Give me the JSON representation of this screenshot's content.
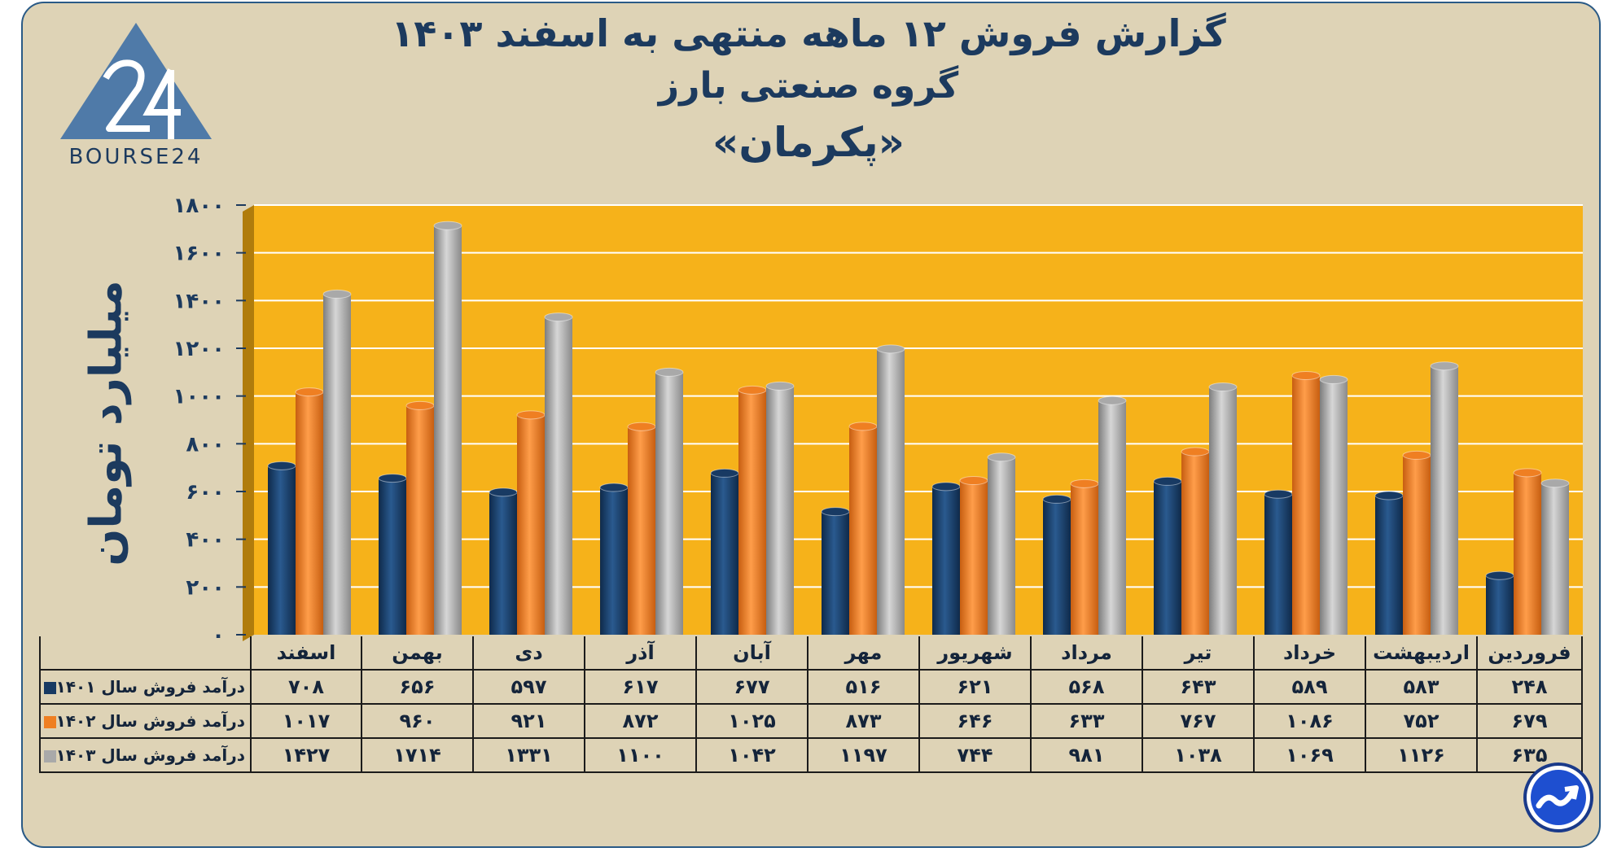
{
  "titles": {
    "line1": "گزارش  فروش ۱۲ ماهه منتهی به اسفند ۱۴۰۳",
    "line2": "گروه صنعتی بارز",
    "line3": "«پکرمان»"
  },
  "logo": {
    "text": "BOURSE24"
  },
  "colors": {
    "background": "#ded3b6",
    "plot_area": "#f6b21a",
    "series_1401": "#183a63",
    "series_1402": "#ef7f22",
    "series_1403": "#a9a9a9",
    "title": "#1c3a5e"
  },
  "chart_data": {
    "type": "bar",
    "ylabel": "میلیارد تومان",
    "ylim": [
      0,
      1800
    ],
    "yticks": [
      0,
      200,
      400,
      600,
      800,
      1000,
      1200,
      1400,
      1600,
      1800
    ],
    "ytick_labels": [
      "۰",
      "۲۰۰",
      "۴۰۰",
      "۶۰۰",
      "۸۰۰",
      "۱۰۰۰",
      "۱۲۰۰",
      "۱۴۰۰",
      "۱۶۰۰",
      "۱۸۰۰"
    ],
    "grid": true,
    "categories": [
      "فروردین",
      "اردیبهشت",
      "خرداد",
      "تیر",
      "مرداد",
      "شهریور",
      "مهر",
      "آبان",
      "آذر",
      "دی",
      "بهمن",
      "اسفند"
    ],
    "series": [
      {
        "name": "درآمد فروش سال ۱۴۰۱",
        "color": "#183a63",
        "values": [
          248,
          583,
          589,
          643,
          568,
          621,
          516,
          677,
          617,
          597,
          656,
          708
        ],
        "labels": [
          "۲۴۸",
          "۵۸۳",
          "۵۸۹",
          "۶۴۳",
          "۵۶۸",
          "۶۲۱",
          "۵۱۶",
          "۶۷۷",
          "۶۱۷",
          "۵۹۷",
          "۶۵۶",
          "۷۰۸"
        ]
      },
      {
        "name": "درآمد فروش سال ۱۴۰۲",
        "color": "#ef7f22",
        "values": [
          679,
          752,
          1086,
          767,
          633,
          646,
          873,
          1025,
          872,
          921,
          960,
          1017
        ],
        "labels": [
          "۶۷۹",
          "۷۵۲",
          "۱۰۸۶",
          "۷۶۷",
          "۶۳۳",
          "۶۴۶",
          "۸۷۳",
          "۱۰۲۵",
          "۸۷۲",
          "۹۲۱",
          "۹۶۰",
          "۱۰۱۷"
        ]
      },
      {
        "name": "درآمد فروش سال ۱۴۰۳",
        "color": "#a9a9a9",
        "values": [
          635,
          1126,
          1069,
          1038,
          981,
          744,
          1197,
          1042,
          1100,
          1331,
          1714,
          1427
        ],
        "labels": [
          "۶۳۵",
          "۱۱۲۶",
          "۱۰۶۹",
          "۱۰۳۸",
          "۹۸۱",
          "۷۴۴",
          "۱۱۹۷",
          "۱۰۴۲",
          "۱۱۰۰",
          "۱۳۳۱",
          "۱۷۱۴",
          "۱۴۲۷"
        ]
      }
    ]
  }
}
